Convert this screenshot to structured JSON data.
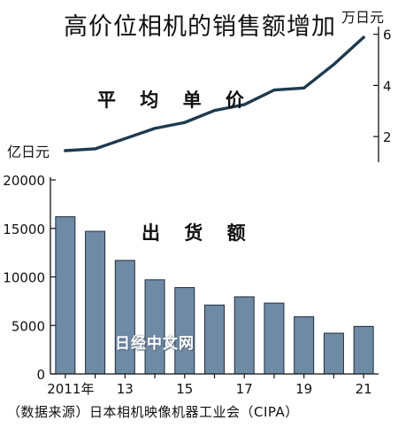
{
  "title": "高价位相机的销售额增加",
  "source": "（数据来源）日本相机映像机器工业会（CIPA）",
  "watermark": "日经中文网",
  "colors": {
    "bar": "#6f8aa5",
    "bar_edge": "#1f2c3b",
    "line": "#1e3a4f",
    "axis": "#111111"
  },
  "chart_data": [
    {
      "type": "line",
      "series_label": "平 均 单 价",
      "unit_label": "万日元",
      "x": [
        "2011",
        "2012",
        "2013",
        "2014",
        "2015",
        "2016",
        "2017",
        "2018",
        "2019",
        "2020",
        "2021"
      ],
      "values": [
        1.45,
        1.52,
        1.92,
        2.32,
        2.55,
        3.02,
        3.25,
        3.82,
        3.9,
        4.82,
        5.88
      ],
      "yticks": [
        2,
        4,
        6
      ],
      "ylim": [
        1.0,
        6.3
      ],
      "axis_side": "right"
    },
    {
      "type": "bar",
      "series_label": "出 货 额",
      "unit_label": "亿日元",
      "categories": [
        "2011",
        "2012",
        "2013",
        "2014",
        "2015",
        "2016",
        "2017",
        "2018",
        "2019",
        "2020",
        "2021"
      ],
      "xtick_labels": [
        "2011年",
        "",
        "13",
        "",
        "15",
        "",
        "17",
        "",
        "19",
        "",
        "21"
      ],
      "values": [
        16200,
        14700,
        11700,
        9700,
        8900,
        7100,
        7950,
        7300,
        5900,
        4200,
        4900
      ],
      "yticks": [
        0,
        5000,
        10000,
        15000,
        20000
      ],
      "ylim": [
        0,
        20000
      ],
      "axis_side": "left"
    }
  ]
}
